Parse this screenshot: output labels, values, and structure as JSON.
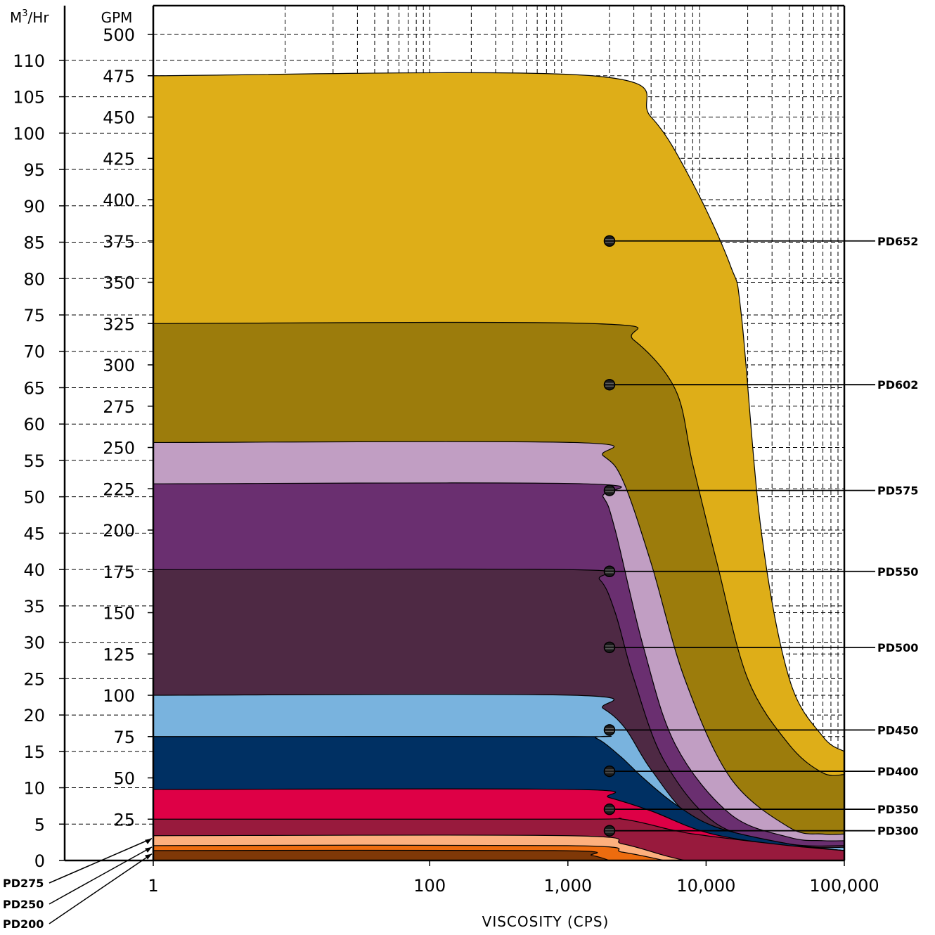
{
  "chart_data": {
    "type": "area",
    "x_scale": "log",
    "xlabel": "VISCOSITY (CPS)",
    "x_ticks": [
      {
        "value": 1,
        "label": "1"
      },
      {
        "value": 100,
        "label": "100"
      },
      {
        "value": 1000,
        "label": "1,000"
      },
      {
        "value": 10000,
        "label": "10,000"
      },
      {
        "value": 100000,
        "label": "100,000"
      }
    ],
    "xlim": [
      1,
      100000
    ],
    "ylabel_gpm": "GPM",
    "ylabel_m3hr_main": "M",
    "ylabel_m3hr_sup": "3",
    "ylabel_m3hr_tail": "/Hr",
    "gpm_ticks": [
      "25",
      "50",
      "75",
      "100",
      "125",
      "150",
      "175",
      "200",
      "225",
      "250",
      "275",
      "300",
      "325",
      "350",
      "375",
      "400",
      "425",
      "450",
      "475",
      "500"
    ],
    "m3hr_ticks": [
      "0",
      "5",
      "10",
      "15",
      "20",
      "25",
      "30",
      "35",
      "40",
      "45",
      "50",
      "55",
      "60",
      "65",
      "70",
      "75",
      "80",
      "85",
      "90",
      "95",
      "100",
      "105",
      "110"
    ],
    "ylim_gpm": [
      0,
      510
    ],
    "grid": true,
    "series": [
      {
        "name": "PD652",
        "color": "#DEAE18",
        "points": [
          [
            1,
            475
          ],
          [
            1500,
            475
          ],
          [
            4000,
            450
          ],
          [
            8000,
            410
          ],
          [
            15000,
            360
          ],
          [
            18000,
            330
          ],
          [
            25000,
            200
          ],
          [
            40000,
            110
          ],
          [
            70000,
            75
          ],
          [
            100000,
            66
          ]
        ]
      },
      {
        "name": "PD602",
        "color": "#9C7C0C",
        "points": [
          [
            1,
            325
          ],
          [
            1500,
            325
          ],
          [
            3000,
            315
          ],
          [
            6000,
            285
          ],
          [
            8000,
            240
          ],
          [
            12000,
            180
          ],
          [
            20000,
            110
          ],
          [
            40000,
            70
          ],
          [
            70000,
            53
          ],
          [
            100000,
            52
          ]
        ]
      },
      {
        "name": "PD575",
        "color": "#C19EC3",
        "points": [
          [
            1,
            253
          ],
          [
            1100,
            253
          ],
          [
            1800,
            245
          ],
          [
            2500,
            230
          ],
          [
            4000,
            180
          ],
          [
            7000,
            110
          ],
          [
            15000,
            50
          ],
          [
            40000,
            20
          ],
          [
            70000,
            16
          ],
          [
            100000,
            16
          ]
        ]
      },
      {
        "name": "PD550",
        "color": "#6A2F70",
        "points": [
          [
            1,
            228
          ],
          [
            1300,
            228
          ],
          [
            1800,
            220
          ],
          [
            2200,
            200
          ],
          [
            3500,
            130
          ],
          [
            6000,
            70
          ],
          [
            15000,
            28
          ],
          [
            40000,
            14
          ],
          [
            70000,
            12
          ],
          [
            100000,
            12
          ]
        ]
      },
      {
        "name": "PD500",
        "color": "#4E2944",
        "points": [
          [
            1,
            176
          ],
          [
            1100,
            176
          ],
          [
            1700,
            170
          ],
          [
            2200,
            150
          ],
          [
            3000,
            110
          ],
          [
            5000,
            60
          ],
          [
            12000,
            22
          ],
          [
            40000,
            10
          ],
          [
            100000,
            9
          ]
        ]
      },
      {
        "name": "PD450",
        "color": "#79B3DE",
        "points": [
          [
            1,
            100
          ],
          [
            1100,
            100
          ],
          [
            1800,
            92
          ],
          [
            2600,
            80
          ],
          [
            4000,
            55
          ],
          [
            8000,
            25
          ],
          [
            20000,
            12
          ],
          [
            60000,
            8
          ],
          [
            100000,
            8
          ]
        ]
      },
      {
        "name": "PD400",
        "color": "#003063",
        "points": [
          [
            1,
            75
          ],
          [
            1100,
            75
          ],
          [
            1600,
            74
          ],
          [
            2400,
            63
          ],
          [
            3500,
            50
          ],
          [
            6000,
            34
          ],
          [
            12000,
            20
          ],
          [
            40000,
            10
          ],
          [
            100000,
            6
          ]
        ]
      },
      {
        "name": "PD350",
        "color": "#DE0046",
        "points": [
          [
            1,
            43
          ],
          [
            1100,
            43
          ],
          [
            2000,
            38
          ],
          [
            4000,
            30
          ],
          [
            10000,
            17
          ],
          [
            30000,
            10
          ],
          [
            100000,
            6
          ]
        ]
      },
      {
        "name": "PD300",
        "color": "#981A3D",
        "points": [
          [
            1,
            25
          ],
          [
            1100,
            25
          ],
          [
            2500,
            25
          ],
          [
            6000,
            18
          ],
          [
            10000,
            15
          ],
          [
            40000,
            9
          ],
          [
            100000,
            6
          ]
        ]
      },
      {
        "name": "PD275",
        "color": "#FDB07E",
        "points": [
          [
            1,
            15
          ],
          [
            1000,
            15
          ],
          [
            2500,
            10
          ],
          [
            5000,
            3
          ],
          [
            7000,
            0
          ]
        ]
      },
      {
        "name": "PD250",
        "color": "#ED6C0F",
        "points": [
          [
            1,
            9
          ],
          [
            1000,
            9
          ],
          [
            2500,
            5
          ],
          [
            5000,
            0
          ]
        ]
      },
      {
        "name": "PD200",
        "color": "#7F3807",
        "points": [
          [
            1,
            6
          ],
          [
            800,
            6
          ],
          [
            1500,
            3
          ],
          [
            2000,
            0
          ]
        ]
      }
    ],
    "markers": [
      {
        "series": "PD652",
        "x": 2000,
        "y": 375
      },
      {
        "series": "PD602",
        "x": 2000,
        "y": 288
      },
      {
        "series": "PD575",
        "x": 2000,
        "y": 224
      },
      {
        "series": "PD550",
        "x": 2000,
        "y": 175
      },
      {
        "series": "PD500",
        "x": 2000,
        "y": 129
      },
      {
        "series": "PD450",
        "x": 2000,
        "y": 79
      },
      {
        "series": "PD400",
        "x": 2000,
        "y": 54
      },
      {
        "series": "PD350",
        "x": 2000,
        "y": 31
      },
      {
        "series": "PD300",
        "x": 2000,
        "y": 18
      }
    ],
    "bottom_labels": [
      "PD275",
      "PD250",
      "PD200"
    ]
  }
}
